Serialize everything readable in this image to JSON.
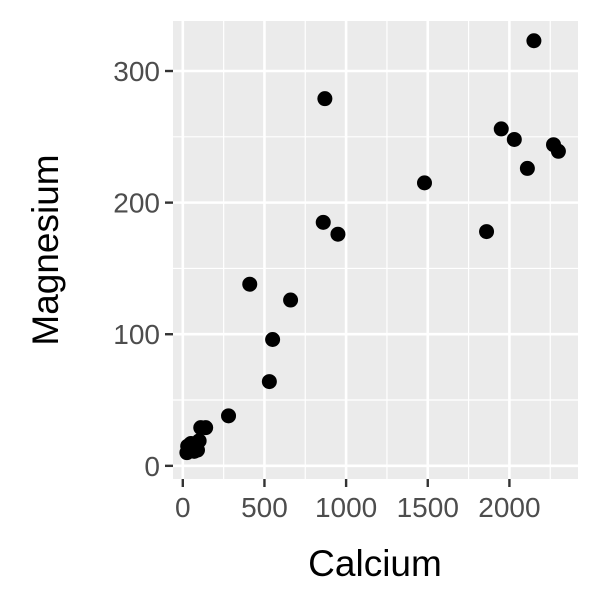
{
  "chart_data": {
    "type": "scatter",
    "title": "",
    "xlabel": "Calcium",
    "ylabel": "Magnesium",
    "xlim": [
      -60,
      2420
    ],
    "ylim": [
      -10,
      338
    ],
    "x_ticks": [
      0,
      500,
      1000,
      1500,
      2000
    ],
    "x_tick_labels": [
      "0",
      "500",
      "1000",
      "1500",
      "2000"
    ],
    "y_ticks": [
      0,
      100,
      200,
      300
    ],
    "y_tick_labels": [
      "0",
      "100",
      "200",
      "300"
    ],
    "grid": true,
    "legend": "none",
    "colors": {
      "panel_background": "#ebebeb",
      "grid": "#ffffff",
      "point": "#000000",
      "tick_label": "#4d4d4d",
      "axis_title": "#000000"
    },
    "points": [
      {
        "x": 25,
        "y": 10
      },
      {
        "x": 30,
        "y": 15
      },
      {
        "x": 40,
        "y": 12
      },
      {
        "x": 50,
        "y": 17
      },
      {
        "x": 60,
        "y": 14
      },
      {
        "x": 70,
        "y": 11
      },
      {
        "x": 80,
        "y": 13
      },
      {
        "x": 90,
        "y": 12
      },
      {
        "x": 100,
        "y": 19
      },
      {
        "x": 110,
        "y": 29
      },
      {
        "x": 140,
        "y": 29
      },
      {
        "x": 280,
        "y": 38
      },
      {
        "x": 410,
        "y": 138
      },
      {
        "x": 530,
        "y": 64
      },
      {
        "x": 550,
        "y": 96
      },
      {
        "x": 660,
        "y": 126
      },
      {
        "x": 860,
        "y": 185
      },
      {
        "x": 870,
        "y": 279
      },
      {
        "x": 950,
        "y": 176
      },
      {
        "x": 1480,
        "y": 215
      },
      {
        "x": 1860,
        "y": 178
      },
      {
        "x": 1950,
        "y": 256
      },
      {
        "x": 2030,
        "y": 248
      },
      {
        "x": 2110,
        "y": 226
      },
      {
        "x": 2150,
        "y": 323
      },
      {
        "x": 2270,
        "y": 244
      },
      {
        "x": 2300,
        "y": 239
      }
    ]
  }
}
